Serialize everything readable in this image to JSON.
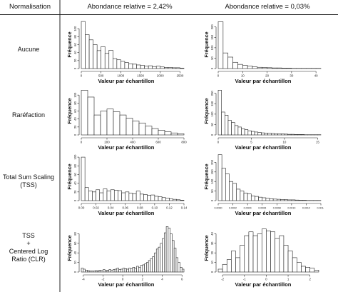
{
  "header": {
    "col0": "Normalisation",
    "col1": "Abondance relative = 2,42%",
    "col2": "Abondance relative = 0,03%"
  },
  "rows": [
    {
      "label_lines": [
        "Aucune"
      ]
    },
    {
      "label_lines": [
        "Raréfaction"
      ]
    },
    {
      "label_lines": [
        "Total Sum Scaling",
        "(TSS)"
      ]
    },
    {
      "label_lines": [
        "TSS",
        "+",
        "Centered Log",
        "Ratio (CLR)"
      ]
    }
  ],
  "axis_text": {
    "ylabel": "Fréquence",
    "xlabel": "Valeur par échantillon"
  },
  "chart_data": [
    {
      "id": "r1c1",
      "type": "bar",
      "row": "Aucune",
      "column": "Abondance relative = 2,42%",
      "xlabel": "Valeur par échantillon",
      "ylabel": "Fréquence",
      "xlim": [
        0,
        2600
      ],
      "ylim": [
        0,
        120
      ],
      "x_ticks": [
        0,
        500,
        1000,
        1500,
        2000,
        2500
      ],
      "x_tick_labels": [
        "0",
        "500",
        "1000",
        "1500",
        "2000",
        "2500"
      ],
      "y_ticks": [
        0,
        20,
        40,
        60,
        80,
        100
      ],
      "y_tick_labels": [
        "0",
        "20",
        "40",
        "60",
        "80",
        "100"
      ],
      "bin_start": 0,
      "bin_width": 100,
      "values": [
        118,
        85,
        72,
        60,
        45,
        55,
        38,
        46,
        25,
        22,
        18,
        15,
        12,
        11,
        9,
        8,
        6,
        7,
        5,
        6,
        4,
        3,
        3,
        2,
        2,
        1
      ]
    },
    {
      "id": "r1c2",
      "type": "bar",
      "row": "Aucune",
      "column": "Abondance relative = 0,03%",
      "xlabel": "Valeur par échantillon",
      "ylabel": "Fréquence",
      "xlim": [
        0,
        42
      ],
      "ylim": [
        0,
        230
      ],
      "x_ticks": [
        0,
        10,
        20,
        30,
        40
      ],
      "x_tick_labels": [
        "0",
        "10",
        "20",
        "30",
        "40"
      ],
      "y_ticks": [
        0,
        50,
        100,
        150,
        200
      ],
      "y_tick_labels": [
        "0",
        "50",
        "100",
        "150",
        "200"
      ],
      "bin_start": 0,
      "bin_width": 2,
      "values": [
        225,
        75,
        55,
        30,
        20,
        15,
        12,
        8,
        6,
        5,
        4,
        3,
        3,
        2,
        2,
        1,
        1,
        1,
        1,
        1,
        1
      ]
    },
    {
      "id": "r2c1",
      "type": "bar",
      "row": "Raréfaction",
      "column": "Abondance relative = 2,42%",
      "xlabel": "Valeur par échantillon",
      "ylabel": "Fréquence",
      "xlim": [
        0,
        800
      ],
      "ylim": [
        0,
        120
      ],
      "x_ticks": [
        0,
        200,
        400,
        600,
        800
      ],
      "x_tick_labels": [
        "0",
        "200",
        "400",
        "600",
        "800"
      ],
      "y_ticks": [
        0,
        20,
        40,
        60,
        80,
        100
      ],
      "y_tick_labels": [
        "0",
        "20",
        "40",
        "60",
        "80",
        "100"
      ],
      "bin_start": 0,
      "bin_width": 50,
      "values": [
        112,
        95,
        50,
        60,
        65,
        58,
        50,
        42,
        35,
        30,
        22,
        16,
        12,
        8,
        5,
        3
      ]
    },
    {
      "id": "r2c2",
      "type": "bar",
      "row": "Raréfaction",
      "column": "Abondance relative = 0,03%",
      "xlabel": "Valeur par échantillon",
      "ylabel": "Fréquence",
      "xlim": [
        0,
        15.5
      ],
      "ylim": [
        0,
        230
      ],
      "x_ticks": [
        0,
        5,
        10,
        15
      ],
      "x_tick_labels": [
        "0",
        "5",
        "10",
        "15"
      ],
      "y_ticks": [
        0,
        50,
        100,
        150,
        200
      ],
      "y_tick_labels": [
        "0",
        "50",
        "100",
        "150",
        "200"
      ],
      "bin_start": 0,
      "bin_width": 0.5,
      "values": [
        215,
        110,
        95,
        70,
        60,
        45,
        38,
        30,
        26,
        20,
        17,
        14,
        12,
        10,
        9,
        8,
        7,
        6,
        5,
        5,
        4,
        3,
        3,
        2,
        2,
        2,
        1,
        1,
        1,
        1,
        1
      ]
    },
    {
      "id": "r3c1",
      "type": "bar",
      "row": "Total Sum Scaling (TSS)",
      "column": "Abondance relative = 2,42%",
      "xlabel": "Valeur par échantillon",
      "ylabel": "Fréquence",
      "xlim": [
        0,
        0.14
      ],
      "ylim": [
        0,
        110
      ],
      "x_ticks": [
        0,
        0.02,
        0.04,
        0.06,
        0.08,
        0.1,
        0.12,
        0.14
      ],
      "x_tick_labels": [
        "0.00",
        "0.02",
        "0.04",
        "0.06",
        "0.08",
        "0.10",
        "0.12",
        "0.14"
      ],
      "y_ticks": [
        0,
        20,
        40,
        60,
        80,
        100
      ],
      "y_tick_labels": [
        "0",
        "20",
        "40",
        "60",
        "80",
        "100"
      ],
      "bin_start": 0,
      "bin_width": 0.005,
      "values": [
        100,
        30,
        22,
        20,
        25,
        18,
        27,
        22,
        25,
        24,
        23,
        18,
        20,
        17,
        16,
        22,
        15,
        14,
        12,
        13,
        10,
        9,
        7,
        6,
        4,
        3,
        2,
        1
      ]
    },
    {
      "id": "r3c2",
      "type": "bar",
      "row": "Total Sum Scaling (TSS)",
      "column": "Abondance relative = 0,03%",
      "xlabel": "Valeur par échantillon",
      "ylabel": "Fréquence",
      "xlim": [
        0,
        0.0014
      ],
      "ylim": [
        0,
        250
      ],
      "x_ticks": [
        0,
        0.0002,
        0.0004,
        0.0006,
        0.0008,
        0.001,
        0.0012,
        0.0014
      ],
      "x_tick_labels": [
        "0.0000",
        "0.0002",
        "0.0004",
        "0.0006",
        "0.0008",
        "0.0010",
        "0.0012",
        "0.0014"
      ],
      "y_ticks": [
        0,
        50,
        100,
        150,
        200
      ],
      "y_tick_labels": [
        "0",
        "50",
        "100",
        "150",
        "200"
      ],
      "bin_start": 0,
      "bin_width": 5e-05,
      "values": [
        240,
        170,
        140,
        100,
        90,
        60,
        50,
        40,
        35,
        25,
        22,
        18,
        15,
        12,
        10,
        8,
        7,
        6,
        5,
        4,
        4,
        3,
        2,
        2,
        1,
        1,
        1,
        1
      ]
    },
    {
      "id": "r4c1",
      "type": "bar",
      "row": "TSS + Centered Log Ratio (CLR)",
      "column": "Abondance relative = 2,42%",
      "xlabel": "Valeur par échantillon",
      "ylabel": "Fréquence",
      "xlim": [
        -4.2,
        6.2
      ],
      "ylim": [
        0,
        100
      ],
      "x_ticks": [
        -4,
        -2,
        0,
        2,
        4,
        6
      ],
      "x_tick_labels": [
        "-4",
        "-2",
        "0",
        "2",
        "4",
        "6"
      ],
      "y_ticks": [
        0,
        20,
        40,
        60,
        80
      ],
      "y_tick_labels": [
        "0",
        "20",
        "40",
        "60",
        "80"
      ],
      "bin_start": -4.2,
      "bin_width": 0.2,
      "values": [
        8,
        6,
        4,
        3,
        2,
        2,
        2,
        3,
        2,
        4,
        3,
        5,
        3,
        4,
        5,
        4,
        5,
        6,
        8,
        5,
        6,
        8,
        7,
        6,
        8,
        7,
        10,
        8,
        12,
        10,
        14,
        15,
        17,
        20,
        24,
        28,
        32,
        40,
        48,
        52,
        60,
        70,
        82,
        95,
        92,
        80,
        66,
        50,
        30,
        20,
        10,
        6
      ]
    },
    {
      "id": "r4c2",
      "type": "bar",
      "row": "TSS + Centered Log Ratio (CLR)",
      "column": "Abondance relative = 0,03%",
      "xlabel": "Valeur par échantillon",
      "ylabel": "Fréquence",
      "xlim": [
        -2.2,
        2.5
      ],
      "ylim": [
        0,
        50
      ],
      "x_ticks": [
        -2,
        -1,
        0,
        1,
        2
      ],
      "x_tick_labels": [
        "-2",
        "-1",
        "0",
        "1",
        "2"
      ],
      "y_ticks": [
        0,
        10,
        20,
        30,
        40
      ],
      "y_tick_labels": [
        "0",
        "10",
        "20",
        "30",
        "40"
      ],
      "bin_start": -2.2,
      "bin_width": 0.2,
      "values": [
        3,
        8,
        13,
        22,
        15,
        28,
        38,
        42,
        38,
        40,
        45,
        43,
        42,
        35,
        38,
        28,
        22,
        15,
        10,
        6,
        5,
        4,
        2
      ]
    }
  ]
}
